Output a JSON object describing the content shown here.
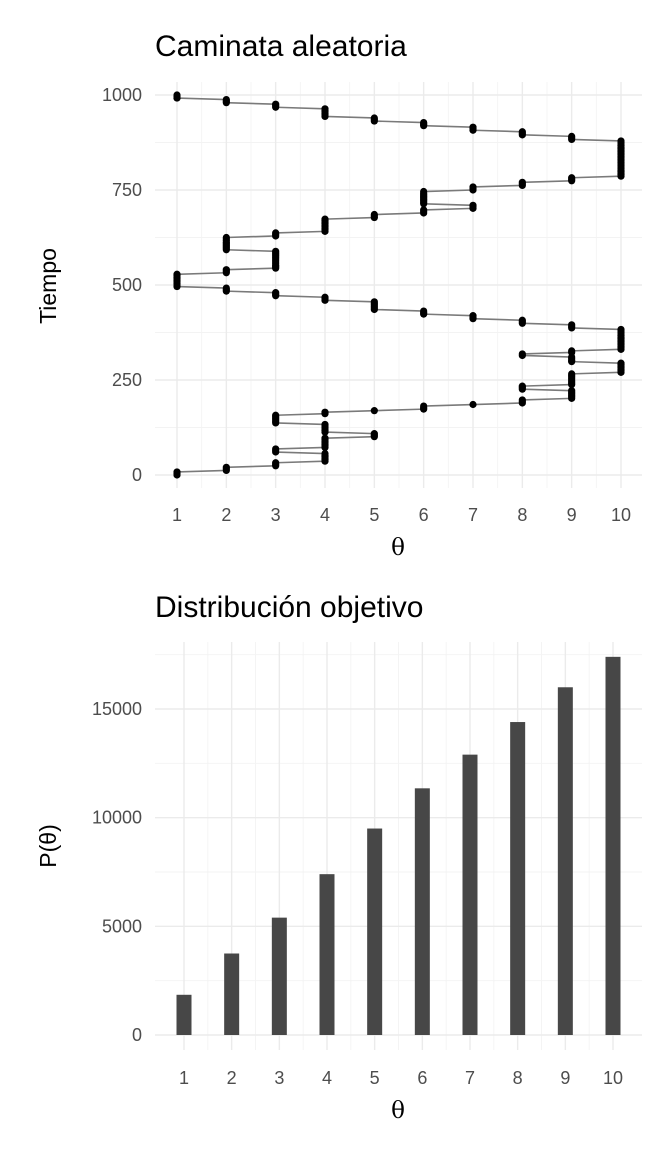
{
  "chart_data": [
    {
      "type": "line",
      "title": "Caminata aleatoria",
      "xlabel": "θ",
      "ylabel": "Tiempo",
      "xlim": [
        1,
        10
      ],
      "ylim": [
        0,
        1000
      ],
      "x_ticks": [
        "1",
        "2",
        "3",
        "4",
        "5",
        "6",
        "7",
        "8",
        "9",
        "10"
      ],
      "y_ticks": [
        "0",
        "250",
        "500",
        "750",
        "1000"
      ],
      "grid": true,
      "legend": "none",
      "series": [
        {
          "x_by_time_step": [
            1,
            1,
            1,
            2,
            2,
            2,
            3,
            3,
            3,
            4,
            4,
            4,
            4,
            4,
            4,
            3,
            3,
            3,
            4,
            4,
            4,
            4,
            4,
            4,
            4,
            5,
            5,
            5,
            4,
            4,
            4,
            4,
            4,
            4,
            3,
            3,
            3,
            3,
            3,
            3,
            4,
            4,
            5,
            6,
            6,
            6,
            7,
            8,
            8,
            8,
            9,
            9,
            9,
            9,
            9,
            9,
            8,
            8,
            8,
            9,
            9,
            9,
            9,
            9,
            9,
            9,
            9,
            10,
            10,
            10,
            10,
            10,
            10,
            10,
            9,
            9,
            9,
            9,
            8,
            8,
            9,
            9,
            10,
            10,
            10,
            10,
            10,
            10,
            10,
            10,
            10,
            10,
            10,
            10,
            10,
            10,
            9,
            9,
            9,
            8,
            8,
            8,
            7,
            7,
            7,
            6,
            6,
            6,
            5,
            5,
            5,
            5,
            5,
            5,
            4,
            4,
            4,
            3,
            3,
            3,
            2,
            2,
            2,
            1,
            1,
            1,
            1,
            1,
            1,
            1,
            1,
            1,
            2,
            2,
            2,
            3,
            3,
            3,
            3,
            3,
            3,
            3,
            3,
            3,
            3,
            3,
            3,
            2,
            2,
            2,
            2,
            2,
            2,
            2,
            2,
            2,
            3,
            3,
            3,
            4,
            4,
            4,
            4,
            4,
            4,
            4,
            4,
            4,
            5,
            5,
            5,
            6,
            6,
            6,
            7,
            7,
            7,
            6,
            6,
            6,
            6,
            6,
            6,
            6,
            6,
            6,
            7,
            7,
            7,
            8,
            8,
            8,
            9,
            9,
            9,
            10,
            10,
            10,
            10,
            10,
            10,
            10,
            10,
            10,
            10,
            10,
            10,
            10,
            10,
            10,
            10,
            10,
            10,
            10,
            10,
            10,
            10,
            10,
            10,
            9,
            9,
            9,
            8,
            8,
            8,
            7,
            7,
            7,
            6,
            6,
            6,
            5,
            5,
            5,
            4,
            4,
            4,
            4,
            4,
            4,
            3,
            3,
            3,
            2,
            2,
            2,
            1,
            1,
            1
          ]
        }
      ]
    },
    {
      "type": "bar",
      "title": "Distribución objetivo",
      "xlabel": "θ",
      "ylabel": "P(θ)",
      "categories": [
        "1",
        "2",
        "3",
        "4",
        "5",
        "6",
        "7",
        "8",
        "9",
        "10"
      ],
      "values": [
        1850,
        3750,
        5400,
        7400,
        9500,
        11350,
        12900,
        14400,
        16000,
        17400
      ],
      "ylim": [
        0,
        18000
      ],
      "y_ticks": [
        "0",
        "5000",
        "10000",
        "15000"
      ],
      "grid": true,
      "color": "#474747"
    }
  ]
}
